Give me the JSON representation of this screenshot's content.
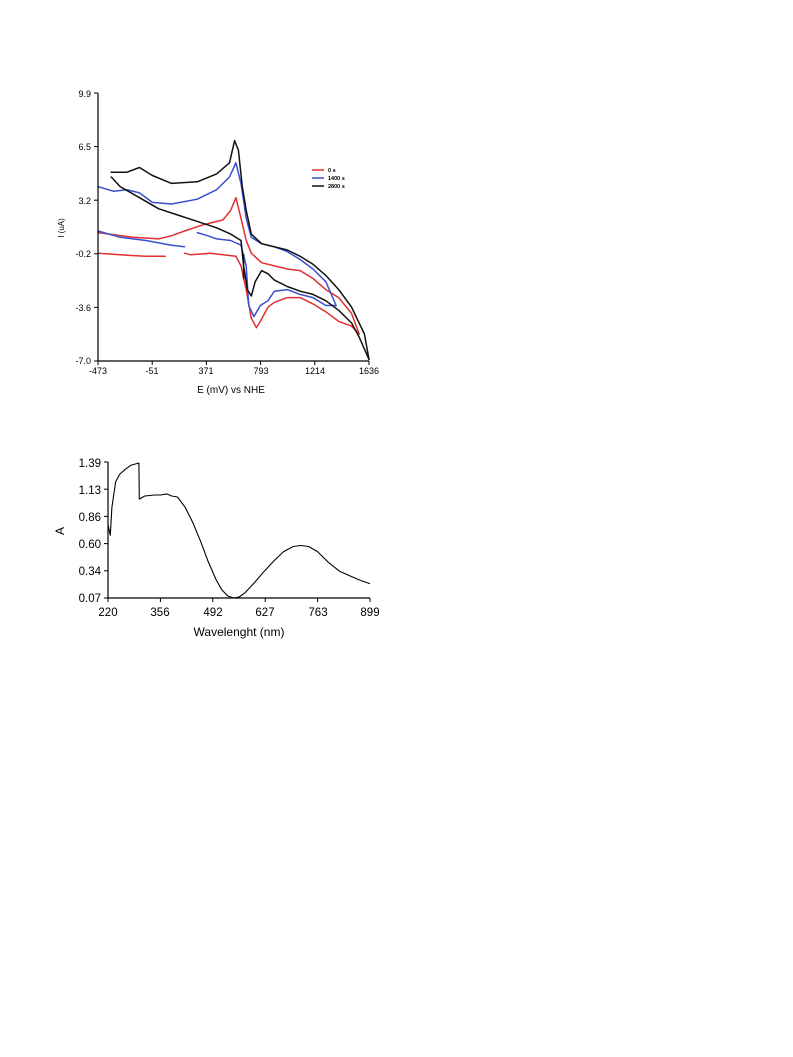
{
  "chart_data": [
    {
      "type": "line",
      "title": "",
      "xlabel": "E (mV)  vs NHE",
      "ylabel": "I (uA)",
      "xlim": [
        -473,
        1636
      ],
      "ylim": [
        -7.0,
        9.9
      ],
      "x_ticks": [
        "-473",
        "-51",
        "371",
        "793",
        "1214",
        "1636"
      ],
      "y_ticks": [
        "9.9",
        "6.5",
        "3.2",
        "-0.2",
        "-3.6",
        "-7.0"
      ],
      "legend_position": "top-right",
      "series": [
        {
          "name": "0 s",
          "color": "#e03030",
          "segments": [
            [
              [
                -473,
                1.1
              ],
              [
                -200,
                0.8
              ],
              [
                0,
                0.7
              ],
              [
                100,
                0.9
              ],
              [
                200,
                1.2
              ],
              [
                350,
                1.6
              ],
              [
                500,
                1.9
              ],
              [
                560,
                2.5
              ],
              [
                600,
                3.3
              ],
              [
                640,
                2.0
              ],
              [
                680,
                0.6
              ],
              [
                720,
                -0.2
              ],
              [
                800,
                -0.8
              ],
              [
                900,
                -1.0
              ],
              [
                1000,
                -1.2
              ],
              [
                1100,
                -1.3
              ],
              [
                1200,
                -1.8
              ],
              [
                1300,
                -2.5
              ],
              [
                1400,
                -3.0
              ],
              [
                1500,
                -4.0
              ],
              [
                1560,
                -5.3
              ]
            ],
            [
              [
                1560,
                -5.3
              ],
              [
                1500,
                -4.8
              ],
              [
                1400,
                -4.5
              ],
              [
                1300,
                -3.9
              ],
              [
                1200,
                -3.4
              ],
              [
                1100,
                -3.0
              ],
              [
                1000,
                -3.0
              ],
              [
                900,
                -3.3
              ],
              [
                850,
                -3.6
              ],
              [
                790,
                -4.5
              ],
              [
                760,
                -4.9
              ],
              [
                720,
                -4.3
              ],
              [
                680,
                -2.5
              ],
              [
                640,
                -1.0
              ],
              [
                600,
                -0.4
              ],
              [
                500,
                -0.3
              ],
              [
                400,
                -0.2
              ],
              [
                250,
                -0.3
              ],
              [
                200,
                -0.2
              ]
            ],
            [
              [
                -473,
                -0.2
              ],
              [
                -300,
                -0.3
              ],
              [
                -100,
                -0.4
              ],
              [
                50,
                -0.4
              ]
            ]
          ]
        },
        {
          "name": "1400 s",
          "color": "#3a4fd0",
          "segments": [
            [
              [
                -473,
                4.0
              ],
              [
                -350,
                3.7
              ],
              [
                -250,
                3.8
              ],
              [
                -150,
                3.6
              ],
              [
                -50,
                3.0
              ],
              [
                100,
                2.9
              ],
              [
                300,
                3.2
              ],
              [
                450,
                3.8
              ],
              [
                550,
                4.6
              ],
              [
                600,
                5.5
              ],
              [
                640,
                4.2
              ],
              [
                680,
                2.0
              ],
              [
                720,
                0.8
              ],
              [
                800,
                0.4
              ],
              [
                900,
                0.2
              ],
              [
                1000,
                -0.1
              ],
              [
                1100,
                -0.6
              ],
              [
                1200,
                -1.2
              ],
              [
                1300,
                -2.0
              ],
              [
                1380,
                -3.5
              ]
            ],
            [
              [
                1380,
                -3.5
              ],
              [
                1300,
                -3.5
              ],
              [
                1200,
                -3.0
              ],
              [
                1100,
                -2.8
              ],
              [
                1000,
                -2.5
              ],
              [
                900,
                -2.6
              ],
              [
                850,
                -3.2
              ],
              [
                790,
                -3.5
              ],
              [
                740,
                -4.2
              ],
              [
                700,
                -3.5
              ],
              [
                680,
                -1.0
              ],
              [
                640,
                0.3
              ],
              [
                560,
                0.6
              ],
              [
                450,
                0.7
              ],
              [
                380,
                0.9
              ],
              [
                300,
                1.1
              ]
            ],
            [
              [
                -473,
                1.2
              ],
              [
                -300,
                0.8
              ],
              [
                -100,
                0.6
              ],
              [
                100,
                0.3
              ],
              [
                200,
                0.2
              ]
            ]
          ]
        },
        {
          "name": "2800 s",
          "color": "#111111",
          "segments": [
            [
              [
                -370,
                4.9
              ],
              [
                -250,
                4.9
              ],
              [
                -150,
                5.2
              ],
              [
                -50,
                4.7
              ],
              [
                100,
                4.2
              ],
              [
                300,
                4.3
              ],
              [
                450,
                4.8
              ],
              [
                550,
                5.5
              ],
              [
                590,
                6.9
              ],
              [
                620,
                6.3
              ],
              [
                650,
                4.0
              ],
              [
                680,
                2.5
              ],
              [
                720,
                1.0
              ],
              [
                800,
                0.4
              ],
              [
                1000,
                0.0
              ],
              [
                1100,
                -0.4
              ],
              [
                1200,
                -0.9
              ],
              [
                1300,
                -1.6
              ],
              [
                1400,
                -2.5
              ],
              [
                1500,
                -3.6
              ],
              [
                1600,
                -5.3
              ],
              [
                1636,
                -6.9
              ]
            ],
            [
              [
                1636,
                -6.9
              ],
              [
                1560,
                -5.5
              ],
              [
                1500,
                -4.6
              ],
              [
                1400,
                -3.8
              ],
              [
                1300,
                -3.2
              ],
              [
                1200,
                -2.8
              ],
              [
                1100,
                -2.6
              ],
              [
                1000,
                -2.3
              ],
              [
                900,
                -1.9
              ],
              [
                850,
                -1.5
              ],
              [
                800,
                -1.3
              ],
              [
                750,
                -2.0
              ],
              [
                720,
                -2.9
              ],
              [
                690,
                -2.5
              ],
              [
                660,
                -1.0
              ],
              [
                640,
                0.6
              ],
              [
                560,
                1.0
              ],
              [
                450,
                1.4
              ],
              [
                300,
                1.8
              ],
              [
                150,
                2.2
              ],
              [
                0,
                2.6
              ],
              [
                -150,
                3.3
              ],
              [
                -300,
                4.0
              ],
              [
                -370,
                4.6
              ]
            ],
            [
              [
                660,
                -0.3
              ],
              [
                660,
                -1.8
              ]
            ]
          ]
        }
      ]
    },
    {
      "type": "line",
      "title": "",
      "xlabel": "Wavelenght (nm)",
      "ylabel": "A",
      "xlim": [
        220,
        899
      ],
      "ylim": [
        0.07,
        1.39
      ],
      "x_ticks": [
        "220",
        "356",
        "492",
        "627",
        "763",
        "899"
      ],
      "y_ticks": [
        "1.39",
        "1.13",
        "0.86",
        "0.60",
        "0.34",
        "0.07"
      ],
      "series": [
        {
          "color": "#000000",
          "points": [
            [
              220,
              0.78
            ],
            [
              226,
              0.68
            ],
            [
              230,
              0.95
            ],
            [
              240,
              1.2
            ],
            [
              250,
              1.27
            ],
            [
              265,
              1.32
            ],
            [
              280,
              1.36
            ],
            [
              300,
              1.38
            ],
            [
              301,
              1.03
            ],
            [
              315,
              1.06
            ],
            [
              340,
              1.07
            ],
            [
              356,
              1.07
            ],
            [
              372,
              1.08
            ],
            [
              385,
              1.06
            ],
            [
              400,
              1.05
            ],
            [
              420,
              0.95
            ],
            [
              440,
              0.8
            ],
            [
              460,
              0.62
            ],
            [
              480,
              0.42
            ],
            [
              500,
              0.25
            ],
            [
              515,
              0.15
            ],
            [
              530,
              0.09
            ],
            [
              545,
              0.07
            ],
            [
              560,
              0.08
            ],
            [
              575,
              0.12
            ],
            [
              600,
              0.22
            ],
            [
              625,
              0.33
            ],
            [
              650,
              0.43
            ],
            [
              675,
              0.52
            ],
            [
              700,
              0.57
            ],
            [
              720,
              0.58
            ],
            [
              740,
              0.57
            ],
            [
              763,
              0.52
            ],
            [
              790,
              0.42
            ],
            [
              820,
              0.33
            ],
            [
              850,
              0.28
            ],
            [
              875,
              0.24
            ],
            [
              890,
              0.22
            ],
            [
              899,
              0.21
            ]
          ]
        }
      ]
    }
  ]
}
